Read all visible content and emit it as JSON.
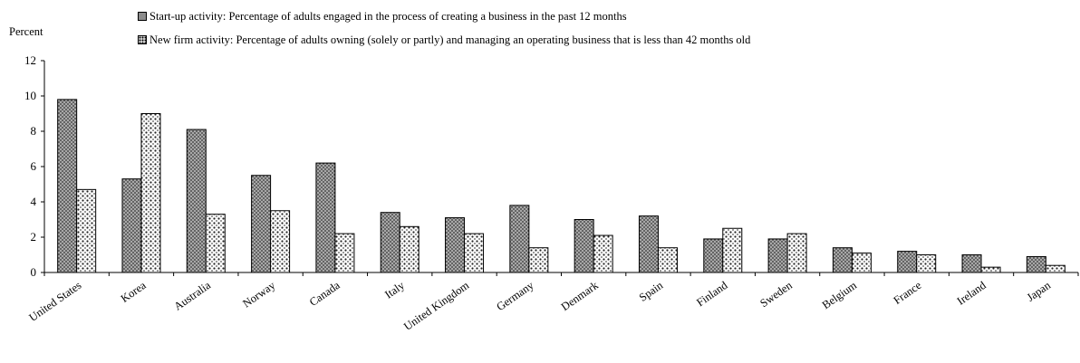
{
  "chart_data": {
    "type": "bar",
    "ylabel": "Percent",
    "xlabel": "",
    "ylim": [
      0,
      12
    ],
    "yticks": [
      0,
      2,
      4,
      6,
      8,
      10,
      12
    ],
    "grid": false,
    "legend_position": "top",
    "categories": [
      "United States",
      "Korea",
      "Australia",
      "Norway",
      "Canada",
      "Italy",
      "United Kingdom",
      "Germany",
      "Denmark",
      "Spain",
      "Finland",
      "Sweden",
      "Belgium",
      "France",
      "Ireland",
      "Japan"
    ],
    "series": [
      {
        "name": "Start-up activity: Percentage of adults engaged in the process of creating a business in the past 12 months",
        "values": [
          9.8,
          5.3,
          8.1,
          5.5,
          6.2,
          3.4,
          3.1,
          3.8,
          3.0,
          3.2,
          1.9,
          1.9,
          1.4,
          1.2,
          1.0,
          0.9
        ],
        "pattern": "dense-dots",
        "color": "#9a9a9a"
      },
      {
        "name": "New firm activity: Percentage of adults owning (solely or partly) and managing an operating business that is less than 42 months old",
        "values": [
          4.7,
          9.0,
          3.3,
          3.5,
          2.2,
          2.6,
          2.2,
          1.4,
          2.1,
          1.4,
          2.5,
          2.2,
          1.1,
          1.0,
          0.3,
          0.4
        ],
        "pattern": "sparse-dots",
        "color": "#ffffff"
      }
    ]
  }
}
